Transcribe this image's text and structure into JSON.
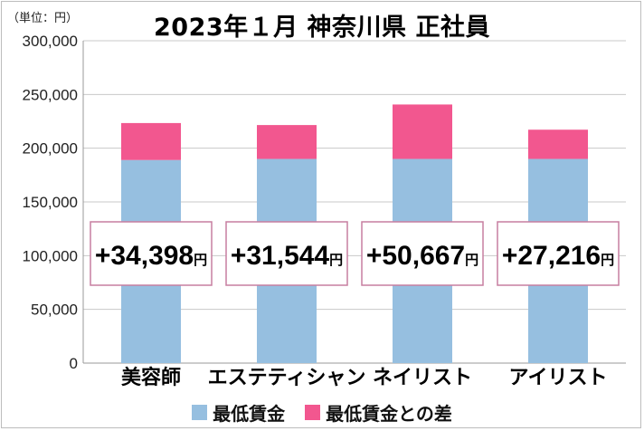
{
  "chart_data": {
    "type": "bar",
    "stacked": true,
    "title": "2023年１月 神奈川県 正社員",
    "unit_label": "（単位：円）",
    "categories": [
      "美容師",
      "エステティシャン",
      "ネイリスト",
      "アイリスト"
    ],
    "series": [
      {
        "name": "最低賃金",
        "color": "#96bfe0",
        "values": [
          189000,
          190000,
          190000,
          190000
        ]
      },
      {
        "name": "最低賃金との差",
        "color": "#f2578f",
        "values": [
          34398,
          31544,
          50667,
          27216
        ]
      }
    ],
    "annotations": [
      "+34,398",
      "+31,544",
      "+50,667",
      "+27,216"
    ],
    "annotation_suffix": "円",
    "ylim": [
      0,
      300000
    ],
    "yticks": [
      0,
      50000,
      100000,
      150000,
      200000,
      250000,
      300000
    ],
    "ytick_labels": [
      "0",
      "50,000",
      "100,000",
      "150,000",
      "200,000",
      "250,000",
      "300,000"
    ],
    "grid": true,
    "legend": "bottom"
  }
}
